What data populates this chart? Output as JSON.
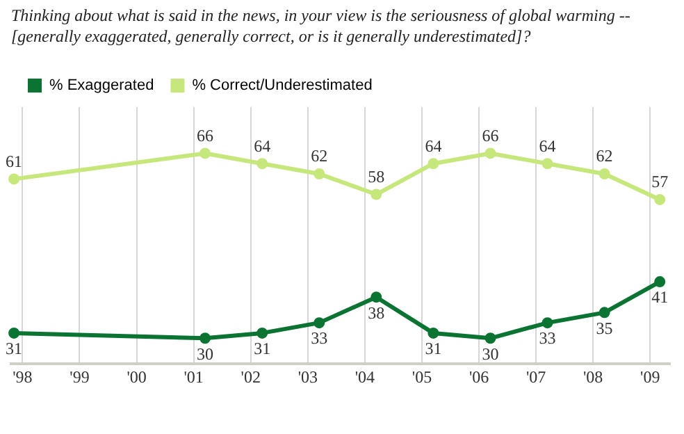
{
  "chart_data": {
    "type": "line",
    "title": "Thinking about what is said in the news, in your view is the seriousness of global warming -- [generally exaggerated, generally correct, or is it generally underestimated]?",
    "x": [
      1997.85,
      2001.2,
      2002.2,
      2003.2,
      2004.2,
      2005.2,
      2006.2,
      2007.2,
      2008.2,
      2009.17
    ],
    "xlim": [
      1997.8,
      2009.35
    ],
    "xticks": [
      {
        "value": 1998,
        "label": "'98"
      },
      {
        "value": 1999,
        "label": "'99"
      },
      {
        "value": 2000,
        "label": "'00"
      },
      {
        "value": 2001,
        "label": "'01"
      },
      {
        "value": 2002,
        "label": "'02"
      },
      {
        "value": 2003,
        "label": "'03"
      },
      {
        "value": 2004,
        "label": "'04"
      },
      {
        "value": 2005,
        "label": "'05"
      },
      {
        "value": 2006,
        "label": "'06"
      },
      {
        "value": 2007,
        "label": "'07"
      },
      {
        "value": 2008,
        "label": "'08"
      },
      {
        "value": 2009,
        "label": "'09"
      }
    ],
    "series": [
      {
        "name": "% Exaggerated",
        "color": "#0b7432",
        "values": [
          31,
          30,
          31,
          33,
          38,
          31,
          30,
          33,
          35,
          41
        ]
      },
      {
        "name": "% Correct/Underestimated",
        "color": "#c6e77c",
        "values": [
          61,
          66,
          64,
          62,
          58,
          64,
          66,
          64,
          62,
          57
        ]
      }
    ],
    "data_labels": true,
    "grid": "x",
    "legend": "top left",
    "marker": "circle",
    "tick_labels": "x"
  }
}
